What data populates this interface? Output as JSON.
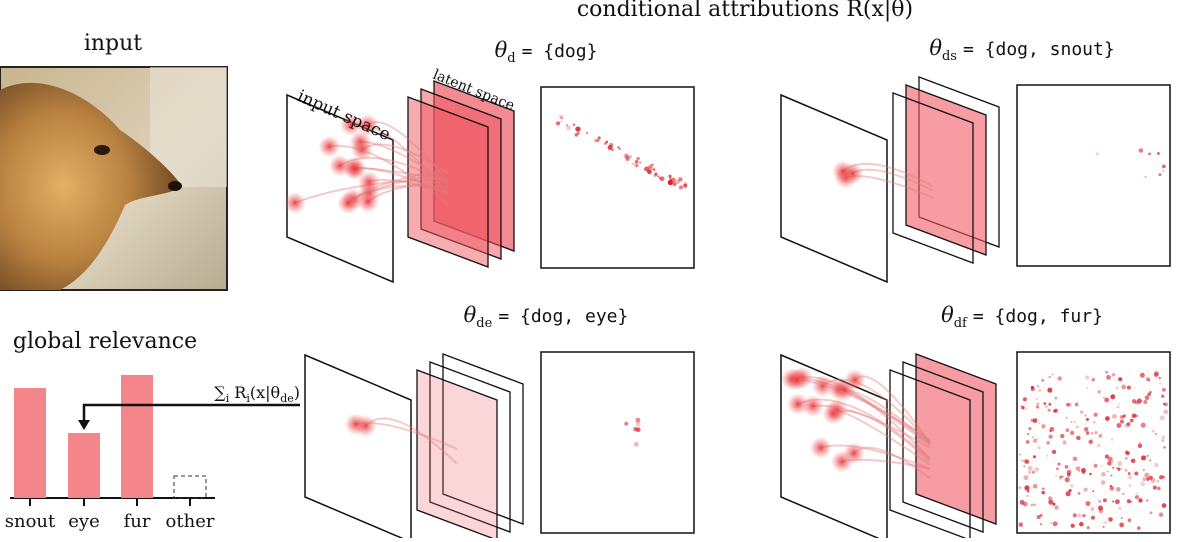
{
  "title": "conditional attributions R(x|θ)",
  "input_label": "input",
  "input_space": "input space",
  "latent_space": "latent space",
  "panels": [
    {
      "theta": "θ",
      "sub": "d",
      "set": "= {dog}"
    },
    {
      "theta": "θ",
      "sub": "ds",
      "set": "= {dog, snout}"
    },
    {
      "theta": "θ",
      "sub": "de",
      "set": "= {dog, eye}"
    },
    {
      "theta": "θ",
      "sub": "df",
      "set": "= {dog, fur}"
    }
  ],
  "annotation": [
    "∑",
    "i",
    " R",
    "i",
    "(x|θ",
    "de",
    ")"
  ],
  "chart_data": {
    "type": "bar",
    "title": "global relevance",
    "categories": [
      "snout",
      "eye",
      "fur",
      "other"
    ],
    "values": [
      110,
      65,
      123,
      22
    ],
    "dashed": [
      false,
      false,
      false,
      true
    ],
    "color": "#f4858a"
  }
}
